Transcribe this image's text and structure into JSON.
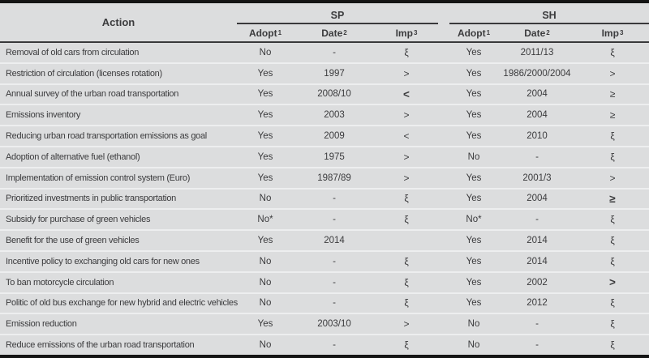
{
  "colors": {
    "row_bg": "#dcddde",
    "border": "#141414",
    "text": "#3b3b3d",
    "rule": "#39393b",
    "separator": "#edeeef"
  },
  "header": {
    "action": "Action",
    "groups": [
      {
        "label": "SP"
      },
      {
        "label": "SH"
      }
    ],
    "subcolumns": [
      {
        "label": "Adopt",
        "sup": "1"
      },
      {
        "label": "Date",
        "sup": "2"
      },
      {
        "label": "Imp",
        "sup": "3"
      }
    ]
  },
  "table": {
    "rows": [
      {
        "action": "Removal of old cars from circulation",
        "sp": {
          "adopt": "No",
          "date": "-",
          "imp": "ξ",
          "imp_bold": false
        },
        "sh": {
          "adopt": "Yes",
          "date": "2011/13",
          "imp": "ξ",
          "imp_bold": false
        }
      },
      {
        "action": "Restriction of circulation (licenses rotation)",
        "sp": {
          "adopt": "Yes",
          "date": "1997",
          "imp": ">",
          "imp_bold": false
        },
        "sh": {
          "adopt": "Yes",
          "date": "1986/2000/2004",
          "imp": ">",
          "imp_bold": false
        }
      },
      {
        "action": "Annual survey of the urban road transportation",
        "sp": {
          "adopt": "Yes",
          "date": "2008/10",
          "imp": "<",
          "imp_bold": true
        },
        "sh": {
          "adopt": "Yes",
          "date": "2004",
          "imp": "≥",
          "imp_bold": false
        }
      },
      {
        "action": "Emissions inventory",
        "sp": {
          "adopt": "Yes",
          "date": "2003",
          "imp": ">",
          "imp_bold": false
        },
        "sh": {
          "adopt": "Yes",
          "date": "2004",
          "imp": "≥",
          "imp_bold": false
        }
      },
      {
        "action": "Reducing urban road transportation emissions as goal",
        "sp": {
          "adopt": "Yes",
          "date": "2009",
          "imp": "<",
          "imp_bold": false
        },
        "sh": {
          "adopt": "Yes",
          "date": "2010",
          "imp": "ξ",
          "imp_bold": false
        }
      },
      {
        "action": "Adoption of alternative fuel (ethanol)",
        "sp": {
          "adopt": "Yes",
          "date": "1975",
          "imp": ">",
          "imp_bold": false
        },
        "sh": {
          "adopt": "No",
          "date": "-",
          "imp": "ξ",
          "imp_bold": false
        }
      },
      {
        "action": "Implementation of emission control system (Euro)",
        "sp": {
          "adopt": "Yes",
          "date": "1987/89",
          "imp": ">",
          "imp_bold": false
        },
        "sh": {
          "adopt": "Yes",
          "date": "2001/3",
          "imp": ">",
          "imp_bold": false
        }
      },
      {
        "action": "Prioritized investments in public transportation",
        "sp": {
          "adopt": "No",
          "date": "-",
          "imp": "ξ",
          "imp_bold": false
        },
        "sh": {
          "adopt": "Yes",
          "date": "2004",
          "imp": "≥",
          "imp_bold": true
        }
      },
      {
        "action": "Subsidy for purchase of green vehicles",
        "sp": {
          "adopt": "No*",
          "date": "-",
          "imp": "ξ",
          "imp_bold": false
        },
        "sh": {
          "adopt": "No*",
          "date": "-",
          "imp": "ξ",
          "imp_bold": false
        }
      },
      {
        "action": "Benefit for the use of green vehicles",
        "sp": {
          "adopt": "Yes",
          "date": "2014",
          "imp": "",
          "imp_bold": false
        },
        "sh": {
          "adopt": "Yes",
          "date": "2014",
          "imp": "ξ",
          "imp_bold": false
        }
      },
      {
        "action": "Incentive policy to exchanging old cars for new ones",
        "sp": {
          "adopt": "No",
          "date": "-",
          "imp": "ξ",
          "imp_bold": false
        },
        "sh": {
          "adopt": "Yes",
          "date": "2014",
          "imp": "ξ",
          "imp_bold": false
        }
      },
      {
        "action": "To ban motorcycle circulation",
        "sp": {
          "adopt": "No",
          "date": "-",
          "imp": "ξ",
          "imp_bold": false
        },
        "sh": {
          "adopt": "Yes",
          "date": "2002",
          "imp": ">",
          "imp_bold": true
        }
      },
      {
        "action": "Politic of old bus exchange for new hybrid and electric vehicles",
        "sp": {
          "adopt": "No",
          "date": "-",
          "imp": "ξ",
          "imp_bold": false
        },
        "sh": {
          "adopt": "Yes",
          "date": "2012",
          "imp": "ξ",
          "imp_bold": false
        }
      },
      {
        "action": "Emission reduction",
        "sp": {
          "adopt": "Yes",
          "date": "2003/10",
          "imp": ">",
          "imp_bold": false
        },
        "sh": {
          "adopt": "No",
          "date": "-",
          "imp": "ξ",
          "imp_bold": false
        }
      },
      {
        "action": "Reduce emissions of the urban road transportation",
        "sp": {
          "adopt": "No",
          "date": "-",
          "imp": "ξ",
          "imp_bold": false
        },
        "sh": {
          "adopt": "No",
          "date": "-",
          "imp": "ξ",
          "imp_bold": false
        }
      }
    ]
  }
}
